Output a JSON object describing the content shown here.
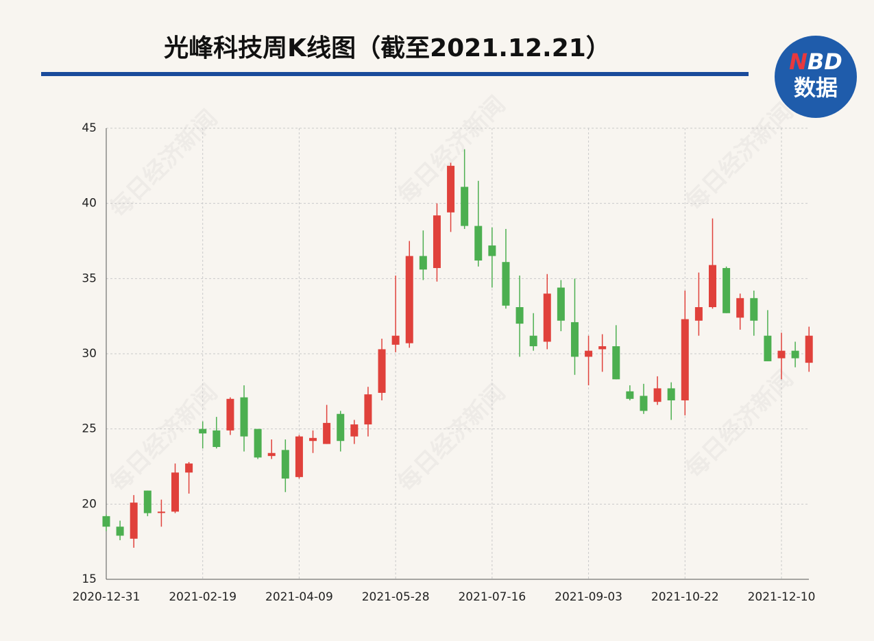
{
  "chart_data": {
    "type": "candlestick",
    "title": "光峰科技周K线图（截至2021.12.21）",
    "logo": {
      "brand": "NBD",
      "label": "数据"
    },
    "watermark": "每日经济新闻",
    "categories": [
      "2020-12-31",
      null,
      null,
      null,
      null,
      null,
      null,
      "2021-02-19",
      null,
      null,
      null,
      null,
      null,
      null,
      "2021-04-09",
      null,
      null,
      null,
      null,
      null,
      null,
      "2021-05-28",
      null,
      null,
      null,
      null,
      null,
      null,
      "2021-07-16",
      null,
      null,
      null,
      null,
      null,
      null,
      "2021-09-03",
      null,
      null,
      null,
      null,
      null,
      null,
      "2021-10-22",
      null,
      null,
      null,
      null,
      null,
      null,
      "2021-12-10",
      null,
      null
    ],
    "open": [
      19.2,
      18.5,
      17.7,
      20.9,
      19.45,
      19.5,
      22.1,
      25.0,
      24.9,
      24.9,
      27.1,
      25.0,
      23.2,
      23.6,
      21.8,
      24.2,
      24.0,
      26.0,
      24.5,
      25.3,
      27.4,
      30.6,
      30.7,
      36.5,
      35.7,
      39.4,
      41.1,
      38.5,
      37.2,
      36.1,
      33.1,
      31.2,
      30.8,
      34.4,
      32.1,
      29.8,
      30.3,
      30.5,
      27.5,
      27.2,
      26.8,
      27.7,
      26.9,
      32.2,
      33.1,
      35.7,
      32.4,
      33.7,
      31.2,
      29.7,
      30.2,
      29.4
    ],
    "high": [
      19.3,
      18.9,
      20.6,
      20.9,
      20.3,
      22.7,
      22.8,
      25.5,
      25.8,
      27.1,
      27.9,
      25.0,
      24.3,
      24.3,
      24.6,
      24.9,
      26.6,
      26.2,
      25.6,
      27.8,
      31.0,
      35.2,
      37.5,
      38.2,
      40.0,
      42.7,
      43.6,
      41.5,
      38.4,
      38.3,
      35.2,
      32.7,
      35.3,
      34.9,
      35.0,
      31.2,
      31.3,
      31.9,
      27.9,
      28.0,
      28.5,
      28.1,
      34.2,
      35.4,
      39.0,
      35.8,
      34.0,
      34.2,
      32.9,
      31.4,
      30.8,
      31.8
    ],
    "low": [
      18.2,
      17.6,
      17.1,
      19.2,
      18.5,
      19.4,
      20.7,
      23.7,
      23.7,
      24.6,
      23.5,
      23.0,
      23.0,
      20.8,
      21.7,
      23.4,
      24.0,
      23.5,
      24.0,
      24.5,
      26.9,
      30.1,
      30.4,
      34.9,
      34.8,
      38.1,
      38.3,
      35.8,
      34.4,
      33.0,
      29.8,
      30.2,
      30.3,
      31.5,
      28.6,
      27.9,
      28.8,
      28.3,
      26.9,
      26.0,
      26.6,
      25.6,
      25.9,
      31.2,
      33.0,
      32.7,
      31.6,
      31.2,
      29.5,
      28.3,
      29.1,
      28.8
    ],
    "close": [
      18.5,
      17.9,
      20.1,
      19.4,
      19.5,
      22.1,
      22.7,
      24.7,
      23.8,
      27.0,
      24.5,
      23.1,
      23.4,
      21.7,
      24.5,
      24.4,
      25.4,
      24.2,
      25.3,
      27.3,
      30.3,
      31.2,
      36.5,
      35.6,
      39.2,
      42.5,
      38.5,
      36.2,
      36.5,
      33.2,
      32.0,
      30.5,
      34.0,
      32.2,
      29.8,
      30.2,
      30.5,
      28.3,
      27.0,
      26.2,
      27.7,
      26.9,
      32.3,
      33.1,
      35.9,
      32.7,
      33.7,
      32.2,
      29.5,
      30.2,
      29.7,
      31.2
    ],
    "up_color": "#e0413b",
    "down_color": "#4caf50",
    "ylim": [
      15,
      45
    ],
    "yticks": [
      15,
      20,
      25,
      30,
      35,
      40,
      45
    ],
    "grid": true
  }
}
